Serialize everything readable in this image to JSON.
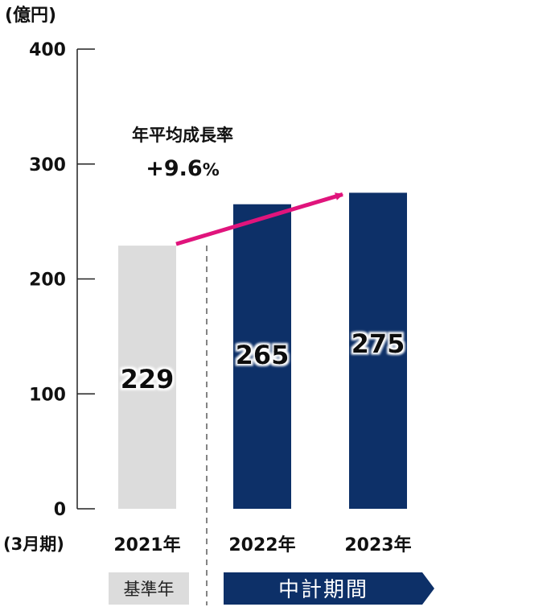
{
  "chart_data": {
    "type": "bar",
    "unit_label": "(億円)",
    "x_axis_label": "(3月期)",
    "categories": [
      "2021年",
      "2022年",
      "2023年"
    ],
    "values": [
      229,
      265,
      275
    ],
    "bar_colors": [
      "#dcdcdc",
      "#0d3068",
      "#0d3068"
    ],
    "ylim": [
      0,
      400
    ],
    "yticks": [
      0,
      100,
      200,
      300,
      400
    ],
    "annotation": {
      "title": "年平均成長率",
      "value": "+9.6",
      "percent_sign": "%",
      "arrow_color": "#e0147c"
    },
    "period_labels": {
      "base": "基準年",
      "plan": "中計期間",
      "base_color": "#dcdcdc",
      "plan_color": "#0d3068"
    }
  }
}
